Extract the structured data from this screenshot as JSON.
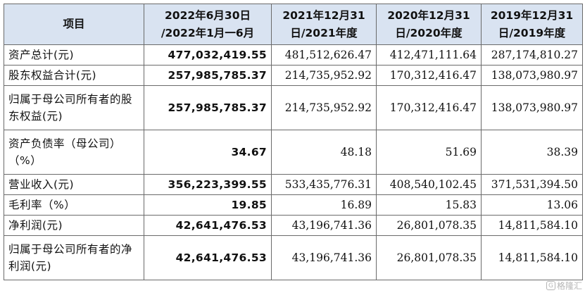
{
  "table": {
    "headers": [
      {
        "l1": "项目",
        "l2": ""
      },
      {
        "l1": "2022年6月30日",
        "l2": "/2022年1月一6月"
      },
      {
        "l1": "2021年12月31",
        "l2": "日/2021年度"
      },
      {
        "l1": "2020年12月31",
        "l2": "日/2020年度"
      },
      {
        "l1": "2019年12月31",
        "l2": "日/2019年度"
      }
    ],
    "rows": [
      {
        "label": "资产总计(元)",
        "values": [
          "477,032,419.55",
          "481,512,626.47",
          "412,471,111.64",
          "287,174,810.27"
        ]
      },
      {
        "label": "股东权益合计(元)",
        "values": [
          "257,985,785.37",
          "214,735,952.92",
          "170,312,416.47",
          "138,073,980.97"
        ]
      },
      {
        "label": "归属于母公司所有者的股东权益(元)",
        "values": [
          "257,985,785.37",
          "214,735,952.92",
          "170,312,416.47",
          "138,073,980.97"
        ]
      },
      {
        "label": "资产负债率（母公司）（%）",
        "values": [
          "34.67",
          "48.18",
          "51.69",
          "38.39"
        ]
      },
      {
        "label": "营业收入(元)",
        "values": [
          "356,223,399.55",
          "533,435,776.31",
          "408,540,102.45",
          "371,531,394.50"
        ]
      },
      {
        "label": "毛利率（%）",
        "values": [
          "19.85",
          "16.89",
          "15.83",
          "13.06"
        ]
      },
      {
        "label": "净利润(元)",
        "values": [
          "42,641,476.53",
          "43,196,741.36",
          "26,801,078.35",
          "14,811,584.10"
        ]
      },
      {
        "label": "归属于母公司所有者的净利润(元)",
        "values": [
          "42,641,476.53",
          "43,196,741.36",
          "26,801,078.35",
          "14,811,584.10"
        ]
      }
    ]
  },
  "watermark": {
    "mark": "G",
    "text": "格隆汇"
  },
  "colors": {
    "header_bg": "#d9e3f1",
    "border": "#6a6a6a"
  }
}
